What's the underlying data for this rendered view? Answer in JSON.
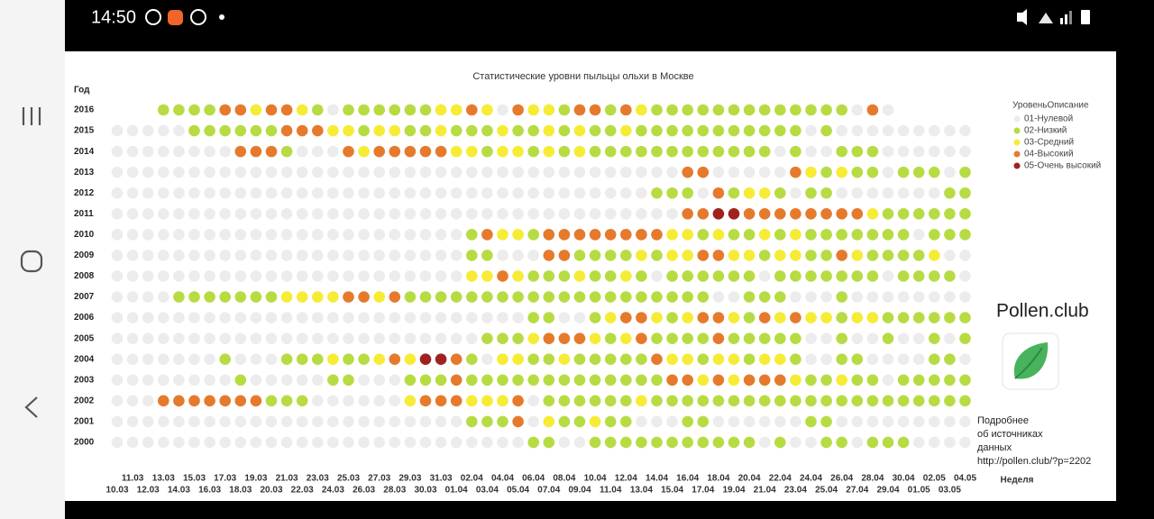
{
  "status_bar": {
    "time": "14:50"
  },
  "info_panel": {
    "brand": "Pollen.club",
    "lines": [
      "Подробнее",
      "об источниках",
      "данных",
      "http://pollen.club/?p=2202"
    ]
  },
  "chart_data": {
    "type": "dot-matrix",
    "title": "Статистические уровни пыльцы ольхи в Москве",
    "y_label": "Год",
    "x_label": "Неделя",
    "legend": {
      "title": "УровеньОписание",
      "position": "right",
      "items": [
        {
          "name": "01-Нулевой",
          "color": "#ececec"
        },
        {
          "name": "02-Низкий",
          "color": "#b7dc43"
        },
        {
          "name": "03-Средний",
          "color": "#f6ec35"
        },
        {
          "name": "04-Высокий",
          "color": "#e67a2c"
        },
        {
          "name": "05-Очень высокий",
          "color": "#a0221e"
        }
      ]
    },
    "categories": [
      "10.03",
      "11.03",
      "12.03",
      "13.03",
      "14.03",
      "15.03",
      "16.03",
      "17.03",
      "18.03",
      "19.03",
      "20.03",
      "21.03",
      "22.03",
      "23.03",
      "24.03",
      "25.03",
      "26.03",
      "27.03",
      "28.03",
      "29.03",
      "30.03",
      "31.03",
      "01.04",
      "02.04",
      "03.04",
      "04.04",
      "05.04",
      "06.04",
      "07.04",
      "08.04",
      "09.04",
      "10.04",
      "11.04",
      "12.04",
      "13.04",
      "14.04",
      "15.04",
      "16.04",
      "17.04",
      "18.04",
      "19.04",
      "20.04",
      "21.04",
      "22.04",
      "23.04",
      "24.04",
      "25.04",
      "26.04",
      "27.04",
      "28.04",
      "29.04",
      "30.04",
      "01.05",
      "02.05",
      "03.05",
      "04.05"
    ],
    "series": [
      {
        "name": "2016",
        "values": [
          null,
          null,
          null,
          2,
          2,
          2,
          2,
          4,
          4,
          3,
          4,
          4,
          3,
          2,
          1,
          2,
          2,
          2,
          2,
          2,
          2,
          3,
          3,
          4,
          3,
          1,
          4,
          3,
          3,
          2,
          4,
          4,
          2,
          4,
          3,
          2,
          2,
          2,
          2,
          2,
          2,
          2,
          2,
          2,
          2,
          2,
          2,
          2,
          1,
          4,
          1,
          null,
          null,
          null,
          null,
          null
        ]
      },
      {
        "name": "2015",
        "values": [
          1,
          1,
          1,
          1,
          1,
          2,
          2,
          2,
          2,
          2,
          2,
          4,
          4,
          4,
          3,
          3,
          2,
          3,
          3,
          2,
          2,
          3,
          2,
          2,
          2,
          3,
          2,
          2,
          3,
          2,
          3,
          2,
          2,
          3,
          2,
          2,
          2,
          2,
          2,
          2,
          2,
          2,
          2,
          2,
          2,
          1,
          2,
          1,
          1,
          1,
          1,
          1,
          1,
          1,
          1,
          1
        ]
      },
      {
        "name": "2014",
        "values": [
          1,
          1,
          1,
          1,
          1,
          1,
          1,
          1,
          4,
          4,
          4,
          2,
          1,
          1,
          1,
          4,
          3,
          4,
          4,
          4,
          4,
          4,
          3,
          3,
          2,
          3,
          3,
          2,
          3,
          2,
          3,
          2,
          2,
          2,
          2,
          2,
          2,
          2,
          2,
          2,
          2,
          2,
          2,
          1,
          2,
          1,
          1,
          2,
          2,
          2,
          1,
          1,
          1,
          1,
          1,
          1
        ]
      },
      {
        "name": "2013",
        "values": [
          1,
          1,
          1,
          1,
          1,
          1,
          1,
          1,
          1,
          1,
          1,
          1,
          1,
          1,
          1,
          1,
          1,
          1,
          1,
          1,
          1,
          1,
          1,
          1,
          1,
          1,
          1,
          1,
          1,
          1,
          1,
          1,
          1,
          1,
          1,
          1,
          1,
          4,
          4,
          1,
          1,
          1,
          1,
          1,
          4,
          3,
          2,
          3,
          2,
          2,
          1,
          2,
          2,
          2,
          1,
          2
        ]
      },
      {
        "name": "2012",
        "values": [
          1,
          1,
          1,
          1,
          1,
          1,
          1,
          1,
          1,
          1,
          1,
          1,
          1,
          1,
          1,
          1,
          1,
          1,
          1,
          1,
          1,
          1,
          1,
          1,
          1,
          1,
          1,
          1,
          1,
          1,
          1,
          1,
          1,
          1,
          1,
          2,
          2,
          2,
          1,
          4,
          2,
          3,
          3,
          2,
          1,
          2,
          2,
          1,
          1,
          1,
          1,
          1,
          1,
          1,
          2,
          2
        ]
      },
      {
        "name": "2011",
        "values": [
          1,
          1,
          1,
          1,
          1,
          1,
          1,
          1,
          1,
          1,
          1,
          1,
          1,
          1,
          1,
          1,
          1,
          1,
          1,
          1,
          1,
          1,
          1,
          1,
          1,
          1,
          1,
          1,
          1,
          1,
          1,
          1,
          1,
          1,
          1,
          1,
          1,
          4,
          4,
          5,
          5,
          4,
          4,
          4,
          4,
          4,
          4,
          4,
          4,
          3,
          2,
          2,
          2,
          2,
          2,
          2
        ]
      },
      {
        "name": "2010",
        "values": [
          1,
          1,
          1,
          1,
          1,
          1,
          1,
          1,
          1,
          1,
          1,
          1,
          1,
          1,
          1,
          1,
          1,
          1,
          1,
          1,
          1,
          1,
          1,
          2,
          4,
          3,
          3,
          2,
          4,
          4,
          4,
          4,
          4,
          4,
          4,
          4,
          3,
          3,
          2,
          3,
          2,
          2,
          3,
          2,
          3,
          2,
          2,
          2,
          2,
          2,
          2,
          2,
          1,
          2,
          2,
          2
        ]
      },
      {
        "name": "2009",
        "values": [
          1,
          1,
          1,
          1,
          1,
          1,
          1,
          1,
          1,
          1,
          1,
          1,
          1,
          1,
          1,
          1,
          1,
          1,
          1,
          1,
          1,
          1,
          1,
          2,
          2,
          1,
          1,
          1,
          4,
          4,
          2,
          2,
          2,
          2,
          3,
          2,
          3,
          3,
          4,
          4,
          3,
          3,
          2,
          3,
          3,
          2,
          2,
          4,
          3,
          2,
          2,
          2,
          2,
          3,
          1,
          1
        ]
      },
      {
        "name": "2008",
        "values": [
          1,
          1,
          1,
          1,
          1,
          1,
          1,
          1,
          1,
          1,
          1,
          1,
          1,
          1,
          1,
          1,
          1,
          1,
          1,
          1,
          1,
          1,
          1,
          3,
          3,
          4,
          3,
          2,
          2,
          2,
          3,
          2,
          2,
          3,
          2,
          1,
          2,
          2,
          2,
          2,
          2,
          2,
          1,
          2,
          2,
          2,
          2,
          2,
          2,
          2,
          1,
          2,
          2,
          2,
          2,
          1
        ]
      },
      {
        "name": "2007",
        "values": [
          1,
          1,
          1,
          1,
          2,
          2,
          2,
          2,
          2,
          2,
          2,
          3,
          3,
          3,
          3,
          4,
          4,
          3,
          4,
          2,
          2,
          2,
          2,
          2,
          2,
          2,
          2,
          2,
          2,
          2,
          2,
          2,
          2,
          2,
          2,
          2,
          2,
          2,
          2,
          1,
          1,
          2,
          2,
          2,
          1,
          1,
          1,
          2,
          1,
          1,
          1,
          1,
          1,
          1,
          1,
          1
        ]
      },
      {
        "name": "2006",
        "values": [
          1,
          1,
          1,
          1,
          1,
          1,
          1,
          1,
          1,
          1,
          1,
          1,
          1,
          1,
          1,
          1,
          1,
          1,
          1,
          1,
          1,
          1,
          1,
          1,
          1,
          1,
          1,
          2,
          2,
          1,
          1,
          2,
          3,
          4,
          4,
          3,
          2,
          3,
          4,
          4,
          3,
          2,
          4,
          3,
          4,
          3,
          3,
          2,
          3,
          3,
          2,
          2,
          2,
          2,
          2,
          2
        ]
      },
      {
        "name": "2005",
        "values": [
          1,
          1,
          1,
          1,
          1,
          1,
          1,
          1,
          1,
          1,
          1,
          1,
          1,
          1,
          1,
          1,
          1,
          1,
          1,
          1,
          1,
          1,
          1,
          1,
          2,
          2,
          2,
          3,
          4,
          4,
          4,
          3,
          2,
          3,
          4,
          2,
          2,
          2,
          2,
          4,
          2,
          2,
          2,
          2,
          2,
          1,
          1,
          2,
          1,
          1,
          2,
          1,
          1,
          2,
          1,
          2
        ]
      },
      {
        "name": "2004",
        "values": [
          1,
          1,
          1,
          1,
          1,
          1,
          1,
          2,
          1,
          1,
          1,
          2,
          2,
          2,
          3,
          2,
          2,
          3,
          4,
          3,
          5,
          5,
          4,
          2,
          1,
          3,
          3,
          2,
          2,
          3,
          2,
          2,
          2,
          2,
          2,
          4,
          3,
          3,
          2,
          3,
          3,
          2,
          3,
          3,
          2,
          1,
          1,
          2,
          2,
          1,
          1,
          1,
          1,
          2,
          2,
          1
        ]
      },
      {
        "name": "2003",
        "values": [
          1,
          1,
          1,
          1,
          1,
          1,
          1,
          1,
          2,
          1,
          1,
          1,
          1,
          1,
          2,
          2,
          1,
          1,
          1,
          2,
          2,
          2,
          4,
          2,
          2,
          2,
          2,
          2,
          2,
          2,
          2,
          2,
          2,
          2,
          2,
          2,
          4,
          4,
          3,
          4,
          3,
          4,
          4,
          4,
          3,
          2,
          2,
          3,
          2,
          2,
          1,
          2,
          2,
          2,
          2,
          2
        ]
      },
      {
        "name": "2002",
        "values": [
          1,
          1,
          1,
          4,
          4,
          4,
          4,
          4,
          4,
          4,
          2,
          2,
          2,
          1,
          1,
          1,
          1,
          1,
          1,
          3,
          4,
          4,
          4,
          3,
          3,
          3,
          4,
          1,
          2,
          2,
          2,
          2,
          2,
          2,
          3,
          2,
          2,
          2,
          2,
          2,
          2,
          2,
          2,
          2,
          2,
          2,
          2,
          2,
          2,
          2,
          2,
          2,
          2,
          2,
          2,
          2
        ]
      },
      {
        "name": "2001",
        "values": [
          1,
          1,
          1,
          1,
          1,
          1,
          1,
          1,
          1,
          1,
          1,
          1,
          1,
          1,
          1,
          1,
          1,
          1,
          1,
          1,
          1,
          1,
          1,
          2,
          2,
          2,
          4,
          1,
          3,
          2,
          2,
          3,
          2,
          2,
          1,
          1,
          1,
          2,
          2,
          1,
          1,
          1,
          1,
          1,
          1,
          2,
          2,
          1,
          1,
          1,
          1,
          1,
          1,
          1,
          1,
          1
        ]
      },
      {
        "name": "2000",
        "values": [
          1,
          1,
          1,
          1,
          1,
          1,
          1,
          1,
          1,
          1,
          1,
          1,
          1,
          1,
          1,
          1,
          1,
          1,
          1,
          1,
          1,
          1,
          1,
          1,
          1,
          1,
          1,
          2,
          2,
          1,
          1,
          2,
          2,
          2,
          2,
          2,
          2,
          2,
          2,
          2,
          2,
          2,
          1,
          2,
          1,
          1,
          2,
          2,
          1,
          2,
          2,
          2,
          1,
          1,
          1,
          1
        ]
      }
    ]
  }
}
